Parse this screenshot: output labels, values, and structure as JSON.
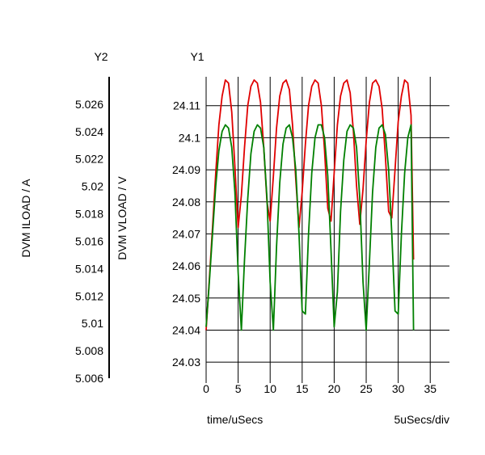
{
  "chart_data": {
    "type": "line",
    "y2_axis": {
      "header": "Y2",
      "label": "DVM ILOAD / A",
      "ylim": [
        5.006,
        5.028
      ],
      "ticks": [
        "5.026",
        "5.024",
        "5.022",
        "5.02",
        "5.018",
        "5.016",
        "5.014",
        "5.012",
        "5.01",
        "5.008",
        "5.006"
      ]
    },
    "y1_axis": {
      "header": "Y1",
      "label": "DVM VLOAD / V",
      "ylim": [
        24.025,
        24.119
      ],
      "ticks": [
        "24.11",
        "24.1",
        "24.09",
        "24.08",
        "24.07",
        "24.06",
        "24.05",
        "24.04",
        "24.03"
      ]
    },
    "x_axis": {
      "label": "time/uSecs",
      "scale_label": "5uSecs/div",
      "xlim": [
        0,
        38
      ],
      "ticks": [
        "0",
        "5",
        "10",
        "15",
        "20",
        "25",
        "30",
        "35"
      ]
    },
    "grid": true,
    "series": [
      {
        "axis": "y1",
        "color": "#e00000",
        "x": [
          0,
          0.5,
          1.0,
          1.5,
          2.0,
          2.5,
          3.0,
          3.5,
          4.0,
          4.5,
          5.0,
          5.5,
          6.0,
          6.5,
          7.0,
          7.5,
          8.0,
          8.5,
          9.0,
          9.5,
          10.0,
          10.5,
          11.0,
          11.5,
          12.0,
          12.5,
          13.0,
          13.5,
          14.0,
          14.5,
          15.0,
          15.5,
          16.0,
          16.5,
          17.0,
          17.5,
          18.0,
          18.5,
          19.0,
          19.5,
          20.0,
          20.5,
          21.0,
          21.5,
          22.0,
          22.5,
          23.0,
          23.5,
          24.0,
          24.5,
          25.0,
          25.5,
          26.0,
          26.5,
          27.0,
          27.5,
          28.0,
          28.5,
          29.0,
          29.5,
          30.0,
          30.5,
          31.0,
          31.5,
          32.0,
          32.4
        ],
        "y": [
          24.04,
          24.056,
          24.072,
          24.089,
          24.104,
          24.113,
          24.118,
          24.117,
          24.108,
          24.091,
          24.072,
          24.082,
          24.097,
          24.11,
          24.116,
          24.118,
          24.117,
          24.111,
          24.097,
          24.08,
          24.074,
          24.088,
          24.103,
          24.113,
          24.117,
          24.118,
          24.115,
          24.104,
          24.087,
          24.072,
          24.083,
          24.098,
          24.11,
          24.116,
          24.118,
          24.117,
          24.11,
          24.096,
          24.078,
          24.074,
          24.089,
          24.104,
          24.113,
          24.117,
          24.118,
          24.114,
          24.102,
          24.085,
          24.073,
          24.084,
          24.099,
          24.111,
          24.117,
          24.118,
          24.116,
          24.109,
          24.094,
          24.077,
          24.075,
          24.09,
          24.105,
          24.113,
          24.118,
          24.117,
          24.107,
          24.062
        ]
      },
      {
        "axis": "y1",
        "color": "#008000",
        "x": [
          0,
          0.5,
          1.0,
          1.5,
          2.0,
          2.5,
          3.0,
          3.5,
          4.0,
          4.5,
          5.0,
          5.5,
          6.0,
          6.5,
          7.0,
          7.5,
          8.0,
          8.5,
          9.0,
          9.5,
          10.0,
          10.5,
          11.0,
          11.5,
          12.0,
          12.5,
          13.0,
          13.5,
          14.0,
          14.5,
          15.0,
          15.5,
          16.0,
          16.5,
          17.0,
          17.5,
          18.0,
          18.5,
          19.0,
          19.5,
          20.0,
          20.5,
          21.0,
          21.5,
          22.0,
          22.5,
          23.0,
          23.5,
          24.0,
          24.5,
          25.0,
          25.5,
          26.0,
          26.5,
          27.0,
          27.5,
          28.0,
          28.5,
          29.0,
          29.5,
          30.0,
          30.5,
          31.0,
          31.5,
          32.0,
          32.4
        ],
        "y": [
          24.041,
          24.055,
          24.07,
          24.085,
          24.096,
          24.102,
          24.104,
          24.103,
          24.097,
          24.083,
          24.058,
          24.04,
          24.062,
          24.081,
          24.095,
          24.102,
          24.104,
          24.103,
          24.097,
          24.081,
          24.055,
          24.04,
          24.066,
          24.086,
          24.098,
          24.103,
          24.104,
          24.1,
          24.09,
          24.07,
          24.046,
          24.045,
          24.07,
          24.089,
          24.1,
          24.104,
          24.104,
          24.1,
          24.088,
          24.065,
          24.041,
          24.052,
          24.077,
          24.093,
          24.102,
          24.104,
          24.103,
          24.097,
          24.081,
          24.055,
          24.04,
          24.061,
          24.083,
          24.097,
          24.103,
          24.104,
          24.101,
          24.09,
          24.07,
          24.046,
          24.045,
          24.07,
          24.089,
          24.1,
          24.104,
          24.04
        ]
      }
    ]
  }
}
